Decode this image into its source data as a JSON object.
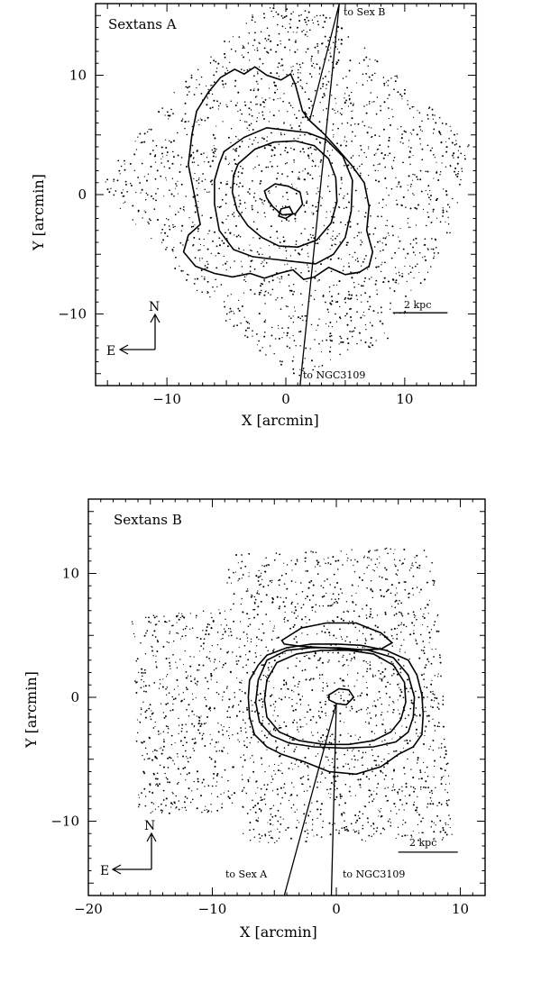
{
  "chart_data": [
    {
      "type": "scatter",
      "title": "Sextans A",
      "xlabel": "X [arcmin]",
      "ylabel": "Y [arcmin]",
      "xlim": [
        -16,
        16
      ],
      "ylim": [
        -16,
        16
      ],
      "xticks": [
        -10,
        0,
        10
      ],
      "yticks": [
        -10,
        0,
        10
      ],
      "xtick_labels": [
        "−10",
        "0",
        "10"
      ],
      "ytick_labels": [
        "−10",
        "0",
        "10"
      ],
      "annotations": {
        "line_up": "to Sex B",
        "line_down": "to NGC3109",
        "scale_bar": "2 kpc",
        "compass_n": "N",
        "compass_e": "E"
      },
      "sightline": {
        "x": [
          2.0,
          4.5,
          1.2
        ],
        "y": [
          6.2,
          16,
          -16
        ]
      },
      "scalebar_data": {
        "x0": 9.0,
        "x1": 13.6,
        "y": -9.9
      },
      "contours": [
        {
          "level": 1,
          "fill": "#bdbdbd",
          "x": [
            -7.5,
            -6.5,
            -5.5,
            -4.3,
            -3.5,
            -2.6,
            -1.6,
            -0.4,
            0.4,
            0.8,
            1.4,
            2.0,
            3.2,
            4.2,
            5.5,
            6.6,
            7.0,
            6.8,
            7.3,
            7.0,
            6.2,
            5.0,
            3.6,
            2.4,
            1.5,
            0.6,
            -0.6,
            -1.8,
            -3.0,
            -4.5,
            -6.0,
            -7.6,
            -8.6,
            -8.2,
            -7.2,
            -7.6,
            -8.2,
            -7.9
          ],
          "y": [
            7.0,
            8.6,
            9.8,
            10.5,
            10.1,
            10.7,
            10.0,
            9.6,
            10.1,
            9.2,
            7.0,
            6.2,
            5.1,
            4.0,
            2.5,
            1.0,
            -1.0,
            -3.0,
            -4.8,
            -6.0,
            -6.5,
            -6.7,
            -6.1,
            -6.9,
            -7.1,
            -6.3,
            -6.6,
            -7.0,
            -6.6,
            -6.9,
            -6.6,
            -6.0,
            -4.8,
            -3.4,
            -2.5,
            -0.5,
            2.5,
            5.0
          ]
        },
        {
          "level": 2,
          "fill": "#8d8d8d",
          "x": [
            -5.2,
            -3.5,
            -1.6,
            0.0,
            1.8,
            3.4,
            4.8,
            5.6,
            5.5,
            5.0,
            4.0,
            2.5,
            0.6,
            -1.2,
            -2.8,
            -4.4,
            -5.6,
            -6.0,
            -6.0,
            -5.6
          ],
          "y": [
            3.6,
            4.8,
            5.6,
            5.4,
            5.2,
            4.6,
            3.2,
            1.2,
            -1.4,
            -3.6,
            -5.0,
            -5.8,
            -5.6,
            -5.4,
            -5.2,
            -4.6,
            -3.0,
            -0.8,
            1.2,
            2.6
          ]
        },
        {
          "level": 3,
          "fill": "#4a4a4a",
          "x": [
            -4.0,
            -2.6,
            -1.0,
            0.8,
            2.4,
            3.6,
            4.2,
            4.3,
            3.8,
            2.6,
            1.0,
            -0.6,
            -2.0,
            -3.2,
            -4.1,
            -4.5,
            -4.4
          ],
          "y": [
            2.6,
            3.8,
            4.4,
            4.5,
            4.1,
            3.0,
            1.4,
            -0.6,
            -2.4,
            -3.8,
            -4.4,
            -4.3,
            -3.6,
            -2.6,
            -1.3,
            0.2,
            1.6
          ]
        },
        {
          "level": 4,
          "fill": "#ffffff",
          "x": [
            -1.8,
            -0.9,
            0.2,
            1.2,
            1.4,
            0.8,
            -0.3,
            -1.1,
            -1.6
          ],
          "y": [
            0.3,
            0.9,
            0.7,
            0.2,
            -0.8,
            -1.6,
            -1.7,
            -1.0,
            -0.3
          ]
        },
        {
          "level": 4,
          "fill": "#ffffff",
          "x": [
            -0.4,
            0.3,
            0.6,
            0.0,
            -0.6
          ],
          "y": [
            -1.2,
            -1.0,
            -1.6,
            -2.0,
            -1.8
          ]
        }
      ],
      "stars_fov": [
        [
          -11.0,
          7.0
        ],
        [
          -2.0,
          16.0
        ],
        [
          3.0,
          15.5
        ],
        [
          15.5,
          4.5
        ],
        [
          14.0,
          -3.0
        ],
        [
          9.0,
          -12.0
        ],
        [
          1.0,
          -15.5
        ],
        [
          -4.0,
          -12.0
        ],
        [
          -15.5,
          0.5
        ],
        [
          -14.0,
          3.0
        ]
      ],
      "stars": 1900,
      "seed": 11
    },
    {
      "type": "scatter",
      "title": "Sextans B",
      "xlabel": "X [arcmin]",
      "ylabel": "Y [arcmin]",
      "xlim": [
        -20,
        12
      ],
      "ylim": [
        -16,
        16
      ],
      "xticks": [
        -20,
        -10,
        0,
        10
      ],
      "yticks": [
        -10,
        0,
        10
      ],
      "xtick_labels": [
        "−20",
        "−10",
        "0",
        "10"
      ],
      "ytick_labels": [
        "−10",
        "0",
        "10"
      ],
      "annotations": {
        "line_left": "to Sex A",
        "line_right": "to NGC3109",
        "scale_bar": "2 kpc",
        "compass_n": "N",
        "compass_e": "E"
      },
      "sightlines": [
        {
          "x": [
            0.0,
            -4.2
          ],
          "y": [
            -0.5,
            -16
          ]
        },
        {
          "x": [
            0.0,
            -0.4
          ],
          "y": [
            -0.5,
            -16
          ]
        }
      ],
      "scalebar_data": {
        "x0": 5.0,
        "x1": 9.8,
        "y": -12.5
      },
      "fields": [
        {
          "x": [
            -8.6,
            -8.0,
            -16.0,
            -16.5
          ],
          "y": [
            7.2,
            -9.0,
            -10.0,
            6.5
          ]
        },
        {
          "x": [
            -9.0,
            7.8,
            9.5,
            -7.5
          ],
          "y": [
            11.5,
            12.2,
            -11.5,
            -11.8
          ]
        }
      ],
      "contours": [
        {
          "level": 1,
          "fill": "#bdbdbd",
          "x": [
            -5.6,
            -4.0,
            -2.0,
            0.0,
            2.0,
            4.0,
            5.8,
            6.5,
            6.9,
            7.0,
            6.9,
            6.2,
            5.0,
            3.6,
            1.6,
            -0.6,
            -2.6,
            -4.4,
            -5.6,
            -6.6,
            -7.0,
            -7.1,
            -7.0,
            -6.3
          ],
          "y": [
            3.4,
            4.0,
            4.3,
            4.3,
            4.2,
            3.8,
            3.0,
            1.8,
            0.2,
            -1.4,
            -3.0,
            -4.0,
            -4.6,
            -5.6,
            -6.2,
            -6.0,
            -5.2,
            -4.6,
            -4.0,
            -3.0,
            -1.6,
            0.0,
            1.4,
            2.6
          ]
        },
        {
          "level": 1,
          "fill": "#bdbdbd",
          "x": [
            -4.4,
            -2.8,
            -0.8,
            1.6,
            3.6,
            4.5,
            3.6,
            1.4,
            -0.8,
            -2.8,
            -4.2
          ],
          "y": [
            4.6,
            5.6,
            6.0,
            6.0,
            5.2,
            4.4,
            3.9,
            3.8,
            4.0,
            4.1,
            4.3
          ]
        },
        {
          "level": 2,
          "fill": "#8d8d8d",
          "x": [
            -5.6,
            -4.0,
            -2.0,
            0.2,
            2.6,
            4.6,
            5.8,
            6.3,
            6.2,
            5.8,
            4.8,
            3.0,
            0.6,
            -1.8,
            -3.8,
            -5.2,
            -6.2,
            -6.5,
            -6.3
          ],
          "y": [
            3.0,
            3.8,
            4.0,
            4.0,
            3.8,
            3.2,
            1.8,
            0.0,
            -1.6,
            -2.8,
            -3.6,
            -4.0,
            -4.1,
            -4.0,
            -3.7,
            -3.1,
            -2.0,
            -0.4,
            1.4
          ]
        },
        {
          "level": 3,
          "fill": "#4a4a4a",
          "x": [
            -4.8,
            -3.2,
            -1.2,
            1.0,
            3.0,
            4.6,
            5.5,
            5.6,
            5.2,
            4.4,
            3.0,
            1.0,
            -1.0,
            -3.0,
            -4.6,
            -5.6,
            -5.8,
            -5.6
          ],
          "y": [
            2.8,
            3.5,
            3.8,
            3.8,
            3.5,
            2.6,
            1.2,
            -0.4,
            -1.8,
            -2.8,
            -3.5,
            -3.8,
            -3.8,
            -3.5,
            -2.8,
            -1.6,
            -0.2,
            1.4
          ]
        },
        {
          "level": 4,
          "fill": "#ffffff",
          "x": [
            -0.6,
            0.2,
            1.0,
            1.4,
            0.8,
            0.0,
            -0.6
          ],
          "y": [
            0.2,
            0.7,
            0.6,
            0.0,
            -0.6,
            -0.5,
            -0.2
          ]
        }
      ],
      "stars": 2100,
      "seed": 23
    }
  ]
}
